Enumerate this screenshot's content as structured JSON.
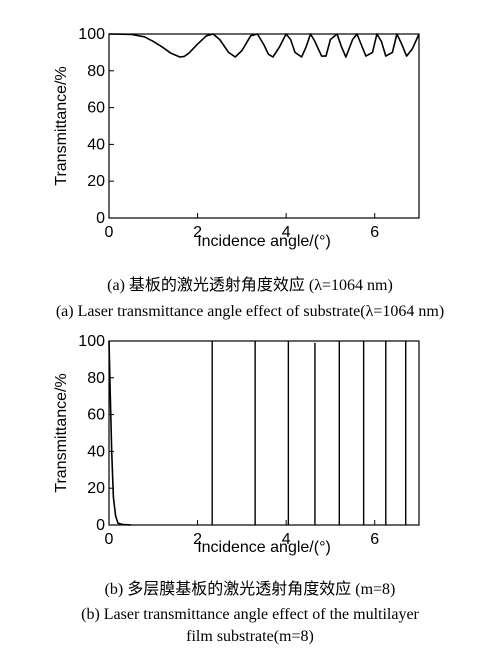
{
  "chart_data": [
    {
      "type": "line",
      "title": "",
      "xlabel": "Incidence angle/(°)",
      "ylabel": "Transmittance/%",
      "xlim": [
        0,
        7
      ],
      "ylim": [
        0,
        100
      ],
      "xticks": [
        "0",
        "2",
        "4",
        "6"
      ],
      "yticks": [
        "0",
        "20",
        "40",
        "60",
        "80",
        "100"
      ],
      "grid": false,
      "description_of_curve": "oscillating transmittance between ~87% and 100%, fringe period shrinking with angle",
      "series": [
        {
          "x": [
            0,
            0.5,
            0.8,
            1.0,
            1.2,
            1.4,
            1.6,
            1.7,
            1.8,
            2.0,
            2.2,
            2.35,
            2.5,
            2.7,
            2.85,
            3.0,
            3.2,
            3.35,
            3.5,
            3.6,
            3.7,
            3.85,
            4.0,
            4.1,
            4.2,
            4.35,
            4.45,
            4.55,
            4.65,
            4.8,
            4.9,
            5.0,
            5.15,
            5.25,
            5.35,
            5.5,
            5.6,
            5.7,
            5.8,
            5.95,
            6.05,
            6.15,
            6.25,
            6.4,
            6.5,
            6.6,
            6.72,
            6.85,
            7.0
          ],
          "y": [
            100,
            99.8,
            98.5,
            96,
            93,
            89.5,
            87.5,
            87.8,
            89.5,
            94.5,
            99,
            100,
            97,
            90,
            87.5,
            91,
            99,
            100,
            94,
            89,
            87.5,
            93,
            100,
            97,
            90,
            87.5,
            93,
            100,
            96,
            88,
            88,
            97,
            100,
            93,
            87.5,
            97,
            100,
            94,
            88,
            90,
            100,
            96,
            88,
            90,
            100,
            95,
            88,
            92,
            100
          ]
        }
      ]
    },
    {
      "type": "line",
      "title": "",
      "xlabel": "Incidence angle/(°)",
      "ylabel": "Transmittance/%",
      "xlim": [
        0,
        7
      ],
      "ylim": [
        0,
        100
      ],
      "xticks": [
        "0",
        "2",
        "4",
        "6"
      ],
      "yticks": [
        "0",
        "20",
        "40",
        "60",
        "80",
        "100"
      ],
      "grid": false,
      "series": [
        {
          "x": [
            0,
            0.03,
            0.06,
            0.1,
            0.15,
            0.2,
            0.3,
            0.5
          ],
          "y": [
            100,
            70,
            40,
            15,
            5,
            1,
            0.3,
            0
          ]
        }
      ],
      "peaks": [
        {
          "x": 2.33,
          "y": 100
        },
        {
          "x": 3.3,
          "y": 100
        },
        {
          "x": 4.05,
          "y": 100
        },
        {
          "x": 4.65,
          "y": 99
        },
        {
          "x": 5.2,
          "y": 100
        },
        {
          "x": 5.75,
          "y": 100
        },
        {
          "x": 6.25,
          "y": 100
        },
        {
          "x": 6.7,
          "y": 100
        }
      ]
    }
  ],
  "captions": {
    "a_cn": "(a) 基板的激光透射角度效应 (λ=1064 nm)",
    "a_en": "(a) Laser transmittance angle effect of substrate(λ=1064 nm)",
    "b_cn": "(b) 多层膜基板的激光透射角度效应 (m=8)",
    "b_en_line1": "(b) Laser transmittance angle effect of the multilayer",
    "b_en_line2": "film substrate(m=8)"
  }
}
